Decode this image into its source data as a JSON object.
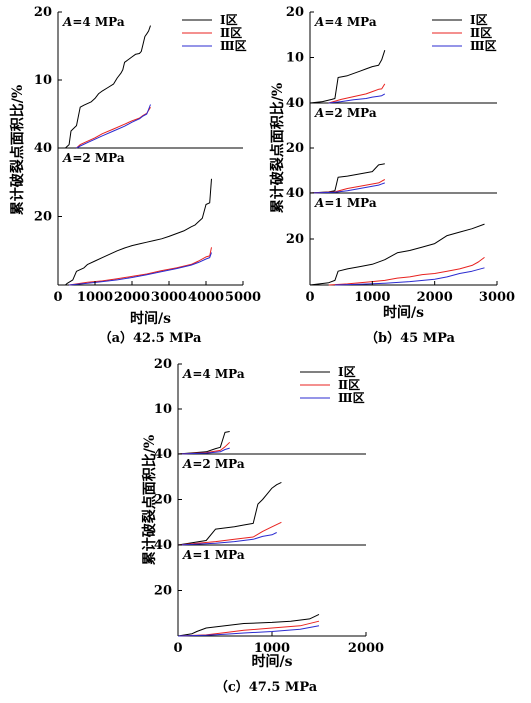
{
  "legend": {
    "zone1": "Ⅰ区",
    "zone2": "Ⅱ区",
    "zone3": "Ⅲ区"
  },
  "colors": {
    "zone1": "#000000",
    "zone2": "#e8221f",
    "zone3": "#2b2bd0"
  },
  "ylabel": "累计破裂点面积比/%",
  "xlabel": "时间/s",
  "chart_data": [
    {
      "caption": "（a）42.5 MPa",
      "type": "line",
      "xticks": [
        "0",
        "1000",
        "2000",
        "3000",
        "4000",
        "5000"
      ],
      "xlim": [
        0,
        5000
      ],
      "panels": [
        {
          "label": "A=4 MPa",
          "ylim": [
            0,
            20
          ],
          "yticks": [
            "20",
            "10"
          ],
          "series": [
            {
              "key": "zone1",
              "name": "Ⅰ区",
              "x": [
                200,
                300,
                350,
                500,
                600,
                700,
                900,
                1000,
                1100,
                1200,
                1350,
                1500,
                1600,
                1700,
                1750,
                1800,
                1900,
                2000,
                2100,
                2200,
                2250,
                2300,
                2350,
                2400,
                2450,
                2500
              ],
              "y": [
                0,
                0.5,
                2.5,
                3.3,
                6.0,
                6.3,
                6.8,
                7.3,
                8.0,
                8.4,
                8.9,
                9.4,
                10.3,
                11.0,
                11.5,
                12.6,
                13.0,
                13.4,
                13.8,
                13.9,
                14.2,
                15.3,
                16.4,
                16.8,
                17.2,
                18.0
              ]
            },
            {
              "key": "zone2",
              "name": "Ⅱ区",
              "x": [
                500,
                600,
                800,
                1000,
                1200,
                1500,
                1800,
                2000,
                2200,
                2300,
                2400,
                2500
              ],
              "y": [
                0,
                0.5,
                1.0,
                1.5,
                2.1,
                2.8,
                3.5,
                4.0,
                4.4,
                4.8,
                5.1,
                6.0
              ]
            },
            {
              "key": "zone3",
              "name": "Ⅲ区",
              "x": [
                500,
                600,
                800,
                1000,
                1200,
                1500,
                1800,
                2000,
                2200,
                2300,
                2400,
                2500
              ],
              "y": [
                0,
                0.3,
                0.8,
                1.3,
                1.8,
                2.5,
                3.2,
                3.8,
                4.3,
                4.7,
                5.0,
                6.4
              ]
            }
          ]
        },
        {
          "label": "A=2 MPa",
          "ylim": [
            0,
            40
          ],
          "yticks": [
            "40",
            "20"
          ],
          "series": [
            {
              "key": "zone1",
              "name": "Ⅰ区",
              "x": [
                200,
                250,
                400,
                500,
                700,
                800,
                1000,
                1200,
                1400,
                1600,
                1800,
                2000,
                2200,
                2400,
                2600,
                2800,
                3000,
                3200,
                3400,
                3600,
                3700,
                3800,
                3900,
                4000,
                4100,
                4150
              ],
              "y": [
                0,
                0.5,
                1.5,
                4.0,
                5.0,
                6.0,
                7.0,
                8.0,
                9.0,
                10.0,
                10.8,
                11.5,
                12.0,
                12.5,
                13.0,
                13.5,
                14.2,
                15.0,
                15.8,
                17.0,
                17.5,
                18.5,
                19.5,
                23.5,
                24.0,
                31.0
              ]
            },
            {
              "key": "zone2",
              "name": "Ⅱ区",
              "x": [
                300,
                800,
                1200,
                1600,
                2000,
                2400,
                2800,
                3200,
                3600,
                3800,
                4000,
                4100,
                4150
              ],
              "y": [
                0,
                0.8,
                1.2,
                1.8,
                2.5,
                3.2,
                4.2,
                5.0,
                6.0,
                7.0,
                8.2,
                8.5,
                11.0
              ]
            },
            {
              "key": "zone3",
              "name": "Ⅲ区",
              "x": [
                300,
                800,
                1200,
                1600,
                2000,
                2400,
                2800,
                3200,
                3600,
                3800,
                4000,
                4100,
                4150
              ],
              "y": [
                0,
                0.5,
                1.0,
                1.5,
                2.2,
                3.0,
                3.9,
                4.8,
                5.8,
                6.6,
                7.6,
                8.0,
                9.5
              ]
            }
          ]
        }
      ]
    },
    {
      "caption": "（b）45 MPa",
      "type": "line",
      "xticks": [
        "0",
        "1000",
        "2000",
        "3000"
      ],
      "xlim": [
        0,
        3000
      ],
      "panels": [
        {
          "label": "A=4 MPa",
          "ylim": [
            0,
            20
          ],
          "yticks": [
            "20",
            "10"
          ],
          "series": [
            {
              "key": "zone1",
              "name": "Ⅰ区",
              "x": [
                0,
                200,
                350,
                400,
                450,
                600,
                800,
                900,
                1000,
                1100,
                1150,
                1200
              ],
              "y": [
                0,
                0.3,
                0.8,
                1.0,
                5.6,
                6.0,
                7.0,
                7.5,
                8.0,
                8.3,
                9.5,
                11.6
              ]
            },
            {
              "key": "zone2",
              "name": "Ⅱ区",
              "x": [
                300,
                500,
                700,
                900,
                1000,
                1100,
                1150,
                1200
              ],
              "y": [
                0,
                0.8,
                1.4,
                2.0,
                2.5,
                3.0,
                3.1,
                4.2
              ]
            },
            {
              "key": "zone3",
              "name": "Ⅲ区",
              "x": [
                300,
                500,
                700,
                900,
                1000,
                1100,
                1150,
                1200
              ],
              "y": [
                0,
                0.3,
                0.7,
                1.0,
                1.3,
                1.5,
                1.6,
                2.0
              ]
            }
          ]
        },
        {
          "label": "A=2 MPa",
          "ylim": [
            0,
            40
          ],
          "yticks": [
            "40",
            "20"
          ],
          "series": [
            {
              "key": "zone1",
              "name": "Ⅰ区",
              "x": [
                0,
                300,
                400,
                450,
                600,
                800,
                1000,
                1100,
                1200
              ],
              "y": [
                0,
                0.5,
                1.0,
                7.0,
                7.5,
                8.5,
                9.5,
                12.5,
                13.0
              ]
            },
            {
              "key": "zone2",
              "name": "Ⅱ区",
              "x": [
                0,
                400,
                600,
                800,
                1000,
                1100,
                1200
              ],
              "y": [
                0,
                0.5,
                2.0,
                3.0,
                4.0,
                4.5,
                6.0
              ]
            },
            {
              "key": "zone3",
              "name": "Ⅲ区",
              "x": [
                0,
                400,
                600,
                800,
                1000,
                1100,
                1200
              ],
              "y": [
                0,
                0.3,
                1.0,
                2.0,
                3.0,
                3.5,
                4.5
              ]
            }
          ]
        },
        {
          "label": "A=1 MPa",
          "ylim": [
            0,
            40
          ],
          "yticks": [
            "40",
            "20"
          ],
          "series": [
            {
              "key": "zone1",
              "name": "Ⅰ区",
              "x": [
                0,
                300,
                400,
                450,
                600,
                800,
                1000,
                1200,
                1400,
                1600,
                1800,
                2000,
                2200,
                2400,
                2600,
                2800
              ],
              "y": [
                0,
                1.0,
                2.0,
                6.0,
                7.0,
                8.0,
                9.0,
                11.0,
                14.0,
                15.0,
                16.5,
                18.0,
                21.5,
                23.0,
                24.5,
                26.5
              ]
            },
            {
              "key": "zone2",
              "name": "Ⅱ区",
              "x": [
                300,
                600,
                800,
                1000,
                1200,
                1400,
                1600,
                1800,
                2000,
                2200,
                2400,
                2600,
                2700,
                2800
              ],
              "y": [
                0,
                0.5,
                1.0,
                1.5,
                2.0,
                3.0,
                3.5,
                4.5,
                5.0,
                6.0,
                7.0,
                8.5,
                10.0,
                12.0
              ]
            },
            {
              "key": "zone3",
              "name": "Ⅲ区",
              "x": [
                400,
                800,
                1200,
                1600,
                2000,
                2200,
                2400,
                2600,
                2800
              ],
              "y": [
                0,
                0.3,
                0.8,
                1.5,
                2.5,
                3.5,
                5.0,
                6.0,
                7.5
              ]
            }
          ]
        }
      ]
    },
    {
      "caption": "（c）47.5 MPa",
      "type": "line",
      "xticks": [
        "0",
        "1000",
        "2000"
      ],
      "xlim": [
        0,
        2000
      ],
      "panels": [
        {
          "label": "A=4 MPa",
          "ylim": [
            0,
            20
          ],
          "yticks": [
            "20",
            "10"
          ],
          "series": [
            {
              "key": "zone1",
              "name": "Ⅰ区",
              "x": [
                0,
                300,
                400,
                450,
                500,
                550
              ],
              "y": [
                0,
                0.5,
                1.2,
                1.5,
                4.8,
                5.0
              ]
            },
            {
              "key": "zone2",
              "name": "Ⅱ区",
              "x": [
                0,
                300,
                450,
                500,
                550
              ],
              "y": [
                0,
                0.3,
                0.8,
                1.6,
                2.6
              ]
            },
            {
              "key": "zone3",
              "name": "Ⅲ区",
              "x": [
                0,
                300,
                450,
                500,
                550
              ],
              "y": [
                0,
                0.2,
                0.5,
                1.0,
                1.3
              ]
            }
          ]
        },
        {
          "label": "A=2 MPa",
          "ylim": [
            0,
            40
          ],
          "yticks": [
            "40",
            "20"
          ],
          "series": [
            {
              "key": "zone1",
              "name": "Ⅰ区",
              "x": [
                0,
                300,
                400,
                600,
                700,
                800,
                850,
                900,
                950,
                1000,
                1050,
                1100
              ],
              "y": [
                0,
                2.0,
                7.0,
                8.0,
                8.8,
                9.5,
                18.0,
                20.0,
                22.5,
                25.0,
                26.5,
                27.5
              ]
            },
            {
              "key": "zone2",
              "name": "Ⅱ区",
              "x": [
                0,
                400,
                600,
                800,
                900,
                1000,
                1100
              ],
              "y": [
                0,
                1.5,
                2.5,
                3.5,
                6.0,
                8.0,
                10.0
              ]
            },
            {
              "key": "zone3",
              "name": "Ⅲ区",
              "x": [
                0,
                400,
                600,
                800,
                900,
                1000,
                1050
              ],
              "y": [
                0,
                0.8,
                1.5,
                2.5,
                3.8,
                4.5,
                5.5
              ]
            }
          ]
        },
        {
          "label": "A=1 MPa",
          "ylim": [
            0,
            40
          ],
          "yticks": [
            "40",
            "20"
          ],
          "series": [
            {
              "key": "zone1",
              "name": "Ⅰ区",
              "x": [
                0,
                150,
                200,
                300,
                500,
                700,
                1000,
                1200,
                1400,
                1500
              ],
              "y": [
                0,
                1.0,
                2.0,
                3.5,
                4.5,
                5.5,
                6.0,
                6.5,
                7.5,
                9.5
              ]
            },
            {
              "key": "zone2",
              "name": "Ⅱ区",
              "x": [
                0,
                300,
                500,
                700,
                1000,
                1300,
                1500
              ],
              "y": [
                0,
                0.5,
                1.5,
                2.5,
                3.5,
                4.5,
                6.5
              ]
            },
            {
              "key": "zone3",
              "name": "Ⅲ区",
              "x": [
                0,
                300,
                500,
                700,
                1000,
                1300,
                1500
              ],
              "y": [
                0,
                0.3,
                0.8,
                1.3,
                2.0,
                3.0,
                4.5
              ]
            }
          ]
        }
      ]
    }
  ]
}
